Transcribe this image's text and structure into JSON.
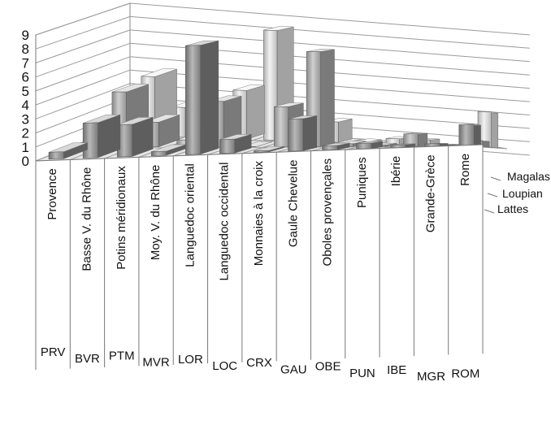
{
  "chart_data": {
    "type": "bar",
    "variant": "3d-clustered-depth",
    "title": "",
    "xlabel": "",
    "ylabel": "",
    "ylim": [
      0,
      9
    ],
    "yticks": [
      0,
      1,
      2,
      3,
      4,
      5,
      6,
      7,
      8,
      9
    ],
    "grid": true,
    "legend": "none",
    "categories": [
      "Provence",
      "Basse V. du Rhône",
      "Potins méridionaux",
      "Moy. V. du Rhône",
      "Languedoc oriental",
      "Languedoc occidental",
      "Monnaies à la croix",
      "Gaule Chevelue",
      "Oboles provençales",
      "Puniques",
      "Ibérie",
      "Grande-Grèce",
      "Rome"
    ],
    "codes": [
      "PRV",
      "BVR",
      "PTM",
      "MVR",
      "LOR",
      "LOC",
      "CRX",
      "GAU",
      "OBE",
      "PUN",
      "IBE",
      "MGR",
      "ROM"
    ],
    "series": [
      {
        "name": "Lattes",
        "color": "#8c8c8c",
        "values": [
          0.5,
          2.5,
          2.3,
          0.3,
          7.8,
          1.0,
          0.1,
          2.3,
          0.3,
          0.4,
          0.2,
          0.2,
          1.5
        ]
      },
      {
        "name": "Loupian",
        "color": "#a9a9a9",
        "values": [
          0.2,
          4.0,
          1.8,
          0.5,
          3.3,
          0.0,
          2.9,
          6.9,
          0.2,
          0.1,
          0.9,
          0.1,
          0.4
        ]
      },
      {
        "name": "Magalas",
        "color": "#d2d2d2",
        "values": [
          0.1,
          4.4,
          2.2,
          0.3,
          3.6,
          8.1,
          1.5,
          1.5,
          0.1,
          0.4,
          0.4,
          0.1,
          2.6
        ]
      }
    ]
  }
}
